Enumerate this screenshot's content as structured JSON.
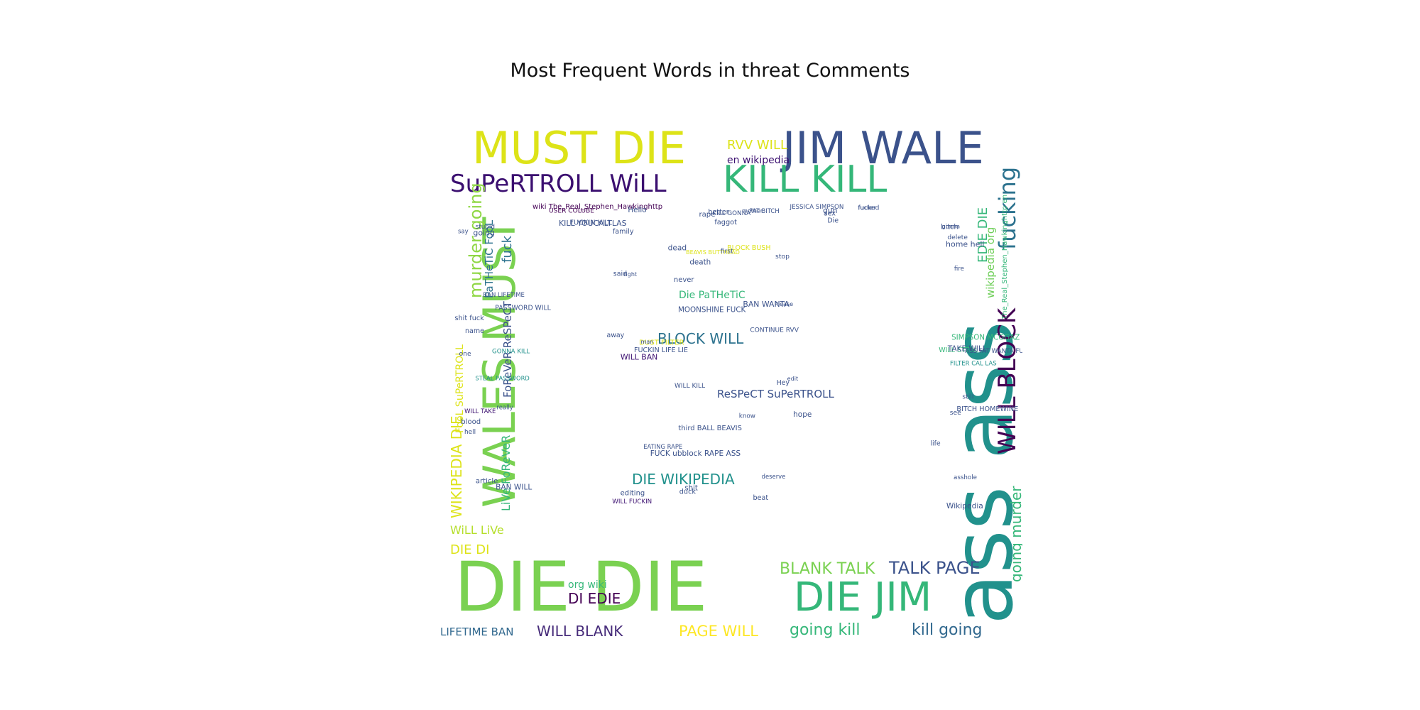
{
  "chart_data": {
    "type": "wordcloud",
    "title": "Most Frequent Words in threat Comments",
    "colormap": "viridis",
    "background": "#ffffff",
    "words": [
      {
        "text": "DIE DIE",
        "weight": 100,
        "color": "#7ad151"
      },
      {
        "text": "ass ass",
        "weight": 96,
        "color": "#21918c"
      },
      {
        "text": "MUST DIE",
        "weight": 58,
        "color": "#dde318"
      },
      {
        "text": "JIM WALE",
        "weight": 58,
        "color": "#3b528b"
      },
      {
        "text": "WALES MUST",
        "weight": 58,
        "color": "#7ad151"
      },
      {
        "text": "KILL KILL",
        "weight": 48,
        "color": "#35b779"
      },
      {
        "text": "DIE JIM",
        "weight": 48,
        "color": "#35b779"
      },
      {
        "text": "SuPeRTROLL WiLL",
        "weight": 36,
        "color": "#3b0f70"
      },
      {
        "text": "WILL BLOCK",
        "weight": 32,
        "color": "#440154"
      },
      {
        "text": "fucking",
        "weight": 30,
        "color": "#2c728e"
      },
      {
        "text": "murder going",
        "weight": 24,
        "color": "#8fd744"
      },
      {
        "text": "WIKIPEDIA DIE",
        "weight": 20,
        "color": "#dde318"
      },
      {
        "text": "TALK PAGE",
        "weight": 22,
        "color": "#3b528b"
      },
      {
        "text": "BLANK TALK",
        "weight": 22,
        "color": "#7ad151"
      },
      {
        "text": "going murder",
        "weight": 20,
        "color": "#35b779"
      },
      {
        "text": "going kill",
        "weight": 22,
        "color": "#35b779"
      },
      {
        "text": "kill going",
        "weight": 22,
        "color": "#31688e"
      },
      {
        "text": "BLOCK WILL",
        "weight": 20,
        "color": "#2c728e"
      },
      {
        "text": "DIE WIKIPEDIA",
        "weight": 19,
        "color": "#21918c"
      },
      {
        "text": "PAGE WILL",
        "weight": 20,
        "color": "#fde725"
      },
      {
        "text": "WILL BLANK",
        "weight": 19,
        "color": "#472c7a"
      },
      {
        "text": "DI EDIE",
        "weight": 18,
        "color": "#440154"
      },
      {
        "text": "DIE DI",
        "weight": 18,
        "color": "#dde318"
      },
      {
        "text": "EDIE DIE",
        "weight": 18,
        "color": "#35b779"
      },
      {
        "text": "fuck",
        "weight": 18,
        "color": "#2c728e"
      },
      {
        "text": "RVV WILL",
        "weight": 18,
        "color": "#dde318"
      },
      {
        "text": "WiLL LiVe",
        "weight": 16,
        "color": "#b5de2b"
      },
      {
        "text": "LiVe FoReVeR",
        "weight": 16,
        "color": "#35b779"
      },
      {
        "text": "PaTHeTiC FooL",
        "weight": 15,
        "color": "#2c728e"
      },
      {
        "text": "ReSPeCT SuPeRTROLL",
        "weight": 15,
        "color": "#3b528b"
      },
      {
        "text": "FoReVeR ReSPeCT",
        "weight": 15,
        "color": "#3b528b"
      },
      {
        "text": "wikipedia org",
        "weight": 15,
        "color": "#6ece58"
      },
      {
        "text": "en wikipedia",
        "weight": 14,
        "color": "#3b0f70"
      },
      {
        "text": "Die PaTHeTiC",
        "weight": 14,
        "color": "#35b779"
      },
      {
        "text": "LIFETIME BAN",
        "weight": 15,
        "color": "#31688e"
      },
      {
        "text": "org wiki",
        "weight": 14,
        "color": "#35b779"
      },
      {
        "text": "FooL SuPeRTROLL",
        "weight": 14,
        "color": "#dde318"
      },
      {
        "text": "The_Real_Stephen_Hawkinghttp en",
        "weight": 10,
        "color": "#35b779"
      },
      {
        "text": "wiki The_Real_Stephen_Hawkinghttp",
        "weight": 9,
        "color": "#440154"
      },
      {
        "text": "WILL KILL",
        "weight": 9,
        "color": "#3b528b"
      },
      {
        "text": "STEAL PASSWORD",
        "weight": 9,
        "color": "#21918c"
      },
      {
        "text": "WILL STEAL",
        "weight": 9,
        "color": "#35b779"
      },
      {
        "text": "FUCKIN KILL",
        "weight": 8,
        "color": "#3b528b"
      },
      {
        "text": "MOONSHINE FUCK",
        "weight": 8,
        "color": "#3b528b"
      },
      {
        "text": "BLOCK BUSH",
        "weight": 8,
        "color": "#dde318"
      },
      {
        "text": "WILL TAKE",
        "weight": 8,
        "color": "#3b0f70"
      },
      {
        "text": "FILTER CAL LAS",
        "weight": 8,
        "color": "#21918c"
      },
      {
        "text": "KILL YOUCALTLAS",
        "weight": 8,
        "color": "#3b528b"
      },
      {
        "text": "WILL BAN",
        "weight": 8,
        "color": "#3b0f70"
      },
      {
        "text": "FUCKIN LIFE LIE",
        "weight": 8,
        "color": "#3b528b"
      },
      {
        "text": "BAN LIFETIME",
        "weight": 8,
        "color": "#3b528b"
      },
      {
        "text": "ASS FAT WANTA FUCKIN",
        "weight": 8,
        "color": "#3b528b"
      },
      {
        "text": "FAT BITCH",
        "weight": 8,
        "color": "#3b528b"
      },
      {
        "text": "CONTINUE RVV",
        "weight": 8,
        "color": "#3b528b"
      },
      {
        "text": "WILL FUCKIN",
        "weight": 8,
        "color": "#3b0f70"
      },
      {
        "text": "GONNA KILL",
        "weight": 8,
        "color": "#21918c"
      },
      {
        "text": "SIMPSON MCGGAZ",
        "weight": 8,
        "color": "#35b779"
      },
      {
        "text": "JESSICA SIMPSON",
        "weight": 8,
        "color": "#3b528b"
      },
      {
        "text": "BEAVIS BUTTHEAD",
        "weight": 8,
        "color": "#dde318"
      },
      {
        "text": "third BALL BEAVIS",
        "weight": 8,
        "color": "#3b528b"
      },
      {
        "text": "PASSWORD WILL",
        "weight": 8,
        "color": "#3b528b"
      },
      {
        "text": "TAKE WILL",
        "weight": 8,
        "color": "#3b528b"
      },
      {
        "text": "KILL GONNA",
        "weight": 8,
        "color": "#3b528b"
      },
      {
        "text": "EATING RAPE",
        "weight": 8,
        "color": "#3b528b"
      },
      {
        "text": "FUCK ubblock RAPE ASS",
        "weight": 8,
        "color": "#3b528b"
      },
      {
        "text": "BAN WILL",
        "weight": 8,
        "color": "#3b528b"
      },
      {
        "text": "BITCH HOMEWINE",
        "weight": 7,
        "color": "#3b528b"
      },
      {
        "text": "USER COLUBE",
        "weight": 7,
        "color": "#440154"
      },
      {
        "text": "DUST FILTER",
        "weight": 7,
        "color": "#dde318"
      },
      {
        "text": "BAN WANTA",
        "weight": 7,
        "color": "#3b528b"
      },
      {
        "text": "shit fuck",
        "weight": 8,
        "color": "#3b528b"
      },
      {
        "text": "home hell",
        "weight": 8,
        "color": "#3b528b"
      },
      {
        "text": "faggot",
        "weight": 9,
        "color": "#3b528b"
      },
      {
        "text": "death",
        "weight": 8,
        "color": "#3b528b"
      },
      {
        "text": "Please",
        "weight": 8,
        "color": "#3b528b"
      },
      {
        "text": "blood",
        "weight": 8,
        "color": "#3b528b"
      },
      {
        "text": "asshole",
        "weight": 8,
        "color": "#3b528b"
      },
      {
        "text": "fucker",
        "weight": 8,
        "color": "#3b528b"
      },
      {
        "text": "family",
        "weight": 8,
        "color": "#3b528b"
      },
      {
        "text": "deserve",
        "weight": 8,
        "color": "#3b528b"
      },
      {
        "text": "stupid",
        "weight": 7,
        "color": "#3b528b"
      },
      {
        "text": "delete",
        "weight": 7,
        "color": "#3b528b"
      },
      {
        "text": "Hello",
        "weight": 8,
        "color": "#3b528b"
      },
      {
        "text": "right",
        "weight": 8,
        "color": "#3b528b"
      },
      {
        "text": "first",
        "weight": 7,
        "color": "#3b528b"
      },
      {
        "text": "one",
        "weight": 7,
        "color": "#3b528b"
      },
      {
        "text": "life",
        "weight": 8,
        "color": "#3b528b"
      },
      {
        "text": "gun",
        "weight": 7,
        "color": "#3b528b"
      },
      {
        "text": "know",
        "weight": 7,
        "color": "#3b528b"
      },
      {
        "text": "dead",
        "weight": 7,
        "color": "#3b528b"
      },
      {
        "text": "say",
        "weight": 7,
        "color": "#3b528b"
      },
      {
        "text": "bitch",
        "weight": 7,
        "color": "#3b528b"
      },
      {
        "text": "better",
        "weight": 7,
        "color": "#3b528b"
      },
      {
        "text": "Hey",
        "weight": 7,
        "color": "#3b528b"
      },
      {
        "text": "editing",
        "weight": 7,
        "color": "#3b528b"
      },
      {
        "text": "article",
        "weight": 7,
        "color": "#3b528b"
      },
      {
        "text": "Wikipedia",
        "weight": 7,
        "color": "#3b528b"
      },
      {
        "text": "rape",
        "weight": 7,
        "color": "#3b528b"
      },
      {
        "text": "beat",
        "weight": 7,
        "color": "#3b528b"
      },
      {
        "text": "hope",
        "weight": 7,
        "color": "#3b528b"
      },
      {
        "text": "going",
        "weight": 7,
        "color": "#3b528b"
      },
      {
        "text": "see",
        "weight": 7,
        "color": "#3b528b"
      },
      {
        "text": "Die",
        "weight": 7,
        "color": "#3b528b"
      },
      {
        "text": "shit",
        "weight": 7,
        "color": "#3b528b"
      },
      {
        "text": "away",
        "weight": 7,
        "color": "#3b528b"
      },
      {
        "text": "really",
        "weight": 7,
        "color": "#3b528b"
      },
      {
        "text": "fire",
        "weight": 7,
        "color": "#3b528b"
      },
      {
        "text": "mother",
        "weight": 7,
        "color": "#3b528b"
      },
      {
        "text": "edit",
        "weight": 7,
        "color": "#3b528b"
      },
      {
        "text": "never",
        "weight": 7,
        "color": "#3b528b"
      },
      {
        "text": "hell",
        "weight": 7,
        "color": "#3b528b"
      },
      {
        "text": "still",
        "weight": 7,
        "color": "#3b528b"
      },
      {
        "text": "fucked",
        "weight": 7,
        "color": "#3b528b"
      },
      {
        "text": "duck",
        "weight": 7,
        "color": "#3b528b"
      },
      {
        "text": "said",
        "weight": 7,
        "color": "#3b528b"
      },
      {
        "text": "name",
        "weight": 7,
        "color": "#3b528b"
      },
      {
        "text": "gonna",
        "weight": 7,
        "color": "#3b528b"
      },
      {
        "text": "sex",
        "weight": 7,
        "color": "#3b528b"
      },
      {
        "text": "stop",
        "weight": 7,
        "color": "#3b528b"
      },
      {
        "text": "man",
        "weight": 7,
        "color": "#3b528b"
      }
    ]
  }
}
